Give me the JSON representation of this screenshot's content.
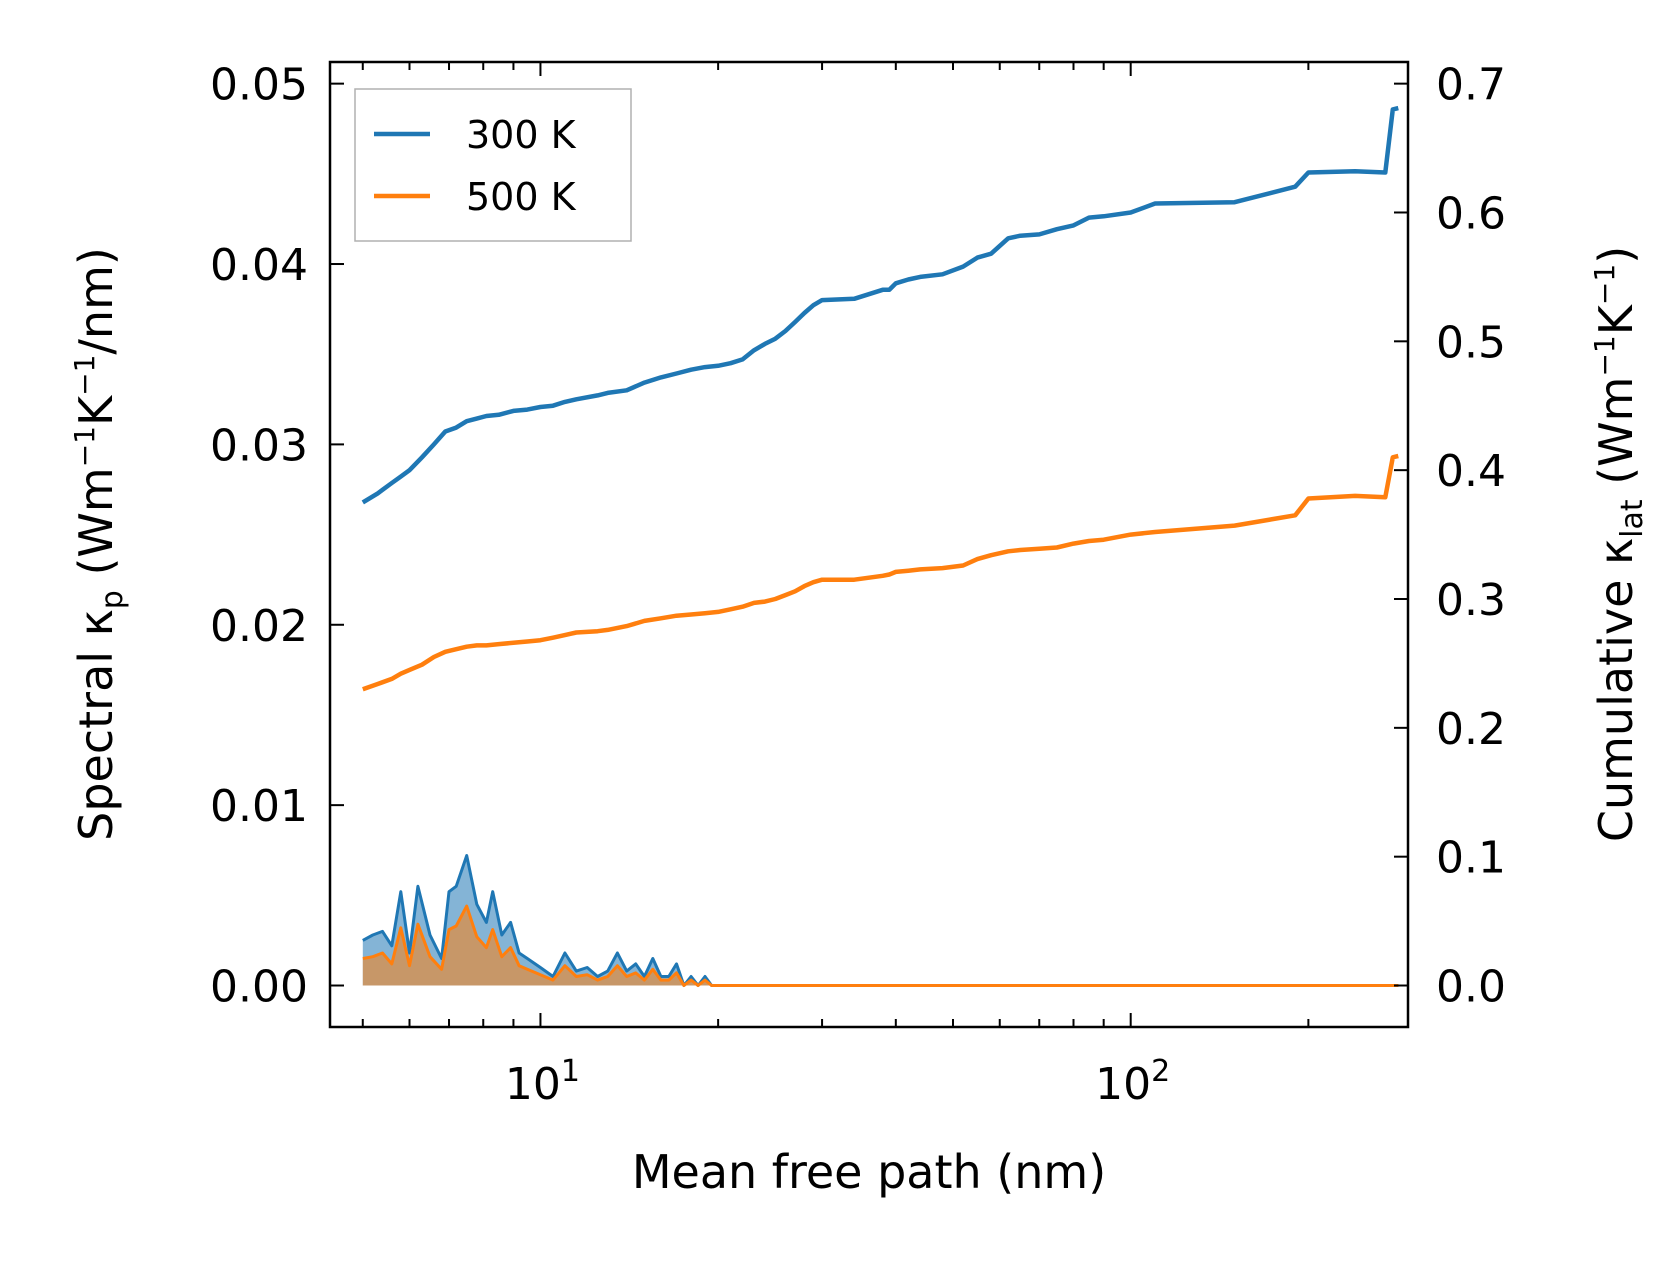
{
  "chart_data": {
    "type": "line",
    "xlabel": "Mean free path (nm)",
    "x_scale": "log",
    "xlim": [
      4.4,
      295
    ],
    "x_ticks": [
      {
        "value": 10,
        "base": "10",
        "exp": "1"
      },
      {
        "value": 100,
        "base": "10",
        "exp": "2"
      }
    ],
    "y_left": {
      "label_prefix": "Spectral κ",
      "label_sub": "p",
      "label_units_open": " (Wm",
      "label_sup1": "−1",
      "label_mid": "K",
      "label_sup2": "−1",
      "label_units_close": "/nm)",
      "ylim": [
        -0.0023,
        0.0512
      ],
      "ticks": [
        0.0,
        0.01,
        0.02,
        0.03,
        0.04,
        0.05
      ],
      "tick_labels": [
        "0.00",
        "0.01",
        "0.02",
        "0.03",
        "0.04",
        "0.05"
      ]
    },
    "y_right": {
      "label_prefix": "Cumulative κ",
      "label_sub": "lat",
      "label_units_open": " (Wm",
      "label_sup1": "−1",
      "label_mid": "K",
      "label_sup2": "−1",
      "label_units_close": ")",
      "ylim": [
        -0.0322,
        0.7168
      ],
      "ticks": [
        0.0,
        0.1,
        0.2,
        0.3,
        0.4,
        0.5,
        0.6,
        0.7
      ],
      "tick_labels": [
        "0.0",
        "0.1",
        "0.2",
        "0.3",
        "0.4",
        "0.5",
        "0.6",
        "0.7"
      ]
    },
    "legend": {
      "position": "top-left",
      "entries": [
        {
          "label": "300 K",
          "color": "#1f77b4"
        },
        {
          "label": "500 K",
          "color": "#ff7f0e"
        }
      ]
    },
    "series": [
      {
        "name": "300 K",
        "axis": "right",
        "kind": "cumulative",
        "color": "#1f77b4",
        "x": [
          5.0,
          5.3,
          5.6,
          5.8,
          6.0,
          6.3,
          6.6,
          6.9,
          7.2,
          7.5,
          7.8,
          8.1,
          8.5,
          9.0,
          9.5,
          10.0,
          10.5,
          11.0,
          11.5,
          12.5,
          13.0,
          14.0,
          15.0,
          16.0,
          17.0,
          18.0,
          19.0,
          20.0,
          21.0,
          22.0,
          23.0,
          24.0,
          25.0,
          26.0,
          27.0,
          28.0,
          29.0,
          30.0,
          34.0,
          38.0,
          39.0,
          40.0,
          42.0,
          44.0,
          48.0,
          52.0,
          55.0,
          58.0,
          62.0,
          65.0,
          70.0,
          75.0,
          80.0,
          85.0,
          90.0,
          100.0,
          110.0,
          150.0,
          190.0,
          200.0,
          240.0,
          270.0,
          278.0,
          284.0
        ],
        "y": [
          0.375,
          0.382,
          0.39,
          0.395,
          0.4,
          0.41,
          0.42,
          0.43,
          0.433,
          0.438,
          0.44,
          0.442,
          0.443,
          0.446,
          0.447,
          0.449,
          0.45,
          0.453,
          0.455,
          0.458,
          0.46,
          0.462,
          0.468,
          0.472,
          0.475,
          0.478,
          0.48,
          0.481,
          0.483,
          0.486,
          0.493,
          0.498,
          0.502,
          0.508,
          0.515,
          0.522,
          0.528,
          0.532,
          0.533,
          0.54,
          0.54,
          0.545,
          0.548,
          0.55,
          0.552,
          0.558,
          0.565,
          0.568,
          0.58,
          0.582,
          0.583,
          0.587,
          0.59,
          0.596,
          0.597,
          0.6,
          0.607,
          0.608,
          0.62,
          0.631,
          0.632,
          0.631,
          0.68,
          0.681
        ]
      },
      {
        "name": "500 K",
        "axis": "right",
        "kind": "cumulative",
        "color": "#ff7f0e",
        "x": [
          5.0,
          5.3,
          5.6,
          5.8,
          6.0,
          6.3,
          6.6,
          6.9,
          7.2,
          7.5,
          7.8,
          8.1,
          8.5,
          9.0,
          9.5,
          10.0,
          10.5,
          11.0,
          11.5,
          12.5,
          13.0,
          14.0,
          15.0,
          16.0,
          17.0,
          18.0,
          19.0,
          20.0,
          21.0,
          22.0,
          23.0,
          24.0,
          25.0,
          26.0,
          27.0,
          28.0,
          29.0,
          30.0,
          34.0,
          38.0,
          39.0,
          40.0,
          42.0,
          44.0,
          48.0,
          52.0,
          55.0,
          58.0,
          62.0,
          65.0,
          70.0,
          75.0,
          80.0,
          85.0,
          90.0,
          100.0,
          110.0,
          150.0,
          190.0,
          200.0,
          240.0,
          270.0,
          278.0,
          284.0
        ],
        "y": [
          0.23,
          0.234,
          0.238,
          0.242,
          0.245,
          0.249,
          0.255,
          0.259,
          0.261,
          0.263,
          0.264,
          0.264,
          0.265,
          0.266,
          0.267,
          0.268,
          0.27,
          0.272,
          0.274,
          0.275,
          0.276,
          0.279,
          0.283,
          0.285,
          0.287,
          0.288,
          0.289,
          0.29,
          0.292,
          0.294,
          0.297,
          0.298,
          0.3,
          0.303,
          0.306,
          0.31,
          0.313,
          0.315,
          0.315,
          0.318,
          0.319,
          0.321,
          0.322,
          0.323,
          0.324,
          0.326,
          0.331,
          0.334,
          0.337,
          0.338,
          0.339,
          0.34,
          0.343,
          0.345,
          0.346,
          0.35,
          0.352,
          0.357,
          0.365,
          0.378,
          0.38,
          0.379,
          0.41,
          0.411
        ]
      },
      {
        "name": "300 K",
        "axis": "left",
        "kind": "spectral",
        "fill": true,
        "color": "#1f77b4",
        "x": [
          5.0,
          5.2,
          5.4,
          5.6,
          5.8,
          6.0,
          6.2,
          6.5,
          6.8,
          7.0,
          7.2,
          7.5,
          7.8,
          8.1,
          8.3,
          8.6,
          8.9,
          9.2,
          9.5,
          10.0,
          10.5,
          11.0,
          11.5,
          12.0,
          12.5,
          13.0,
          13.5,
          14.0,
          14.5,
          15.0,
          15.5,
          16.0,
          16.5,
          17.0,
          17.5,
          18.0,
          18.5,
          19.0,
          19.5,
          20.0,
          20.5,
          21.0,
          22.0,
          23.0,
          24.0,
          25.0,
          26.0,
          27.0,
          28.0,
          29.0,
          30.0,
          31.0,
          33.0,
          37.0,
          38.0,
          39.0,
          40.0,
          41.0,
          42.0,
          43.0,
          44.0,
          45.0,
          47.0,
          51.0,
          52.0,
          53.0,
          55.0,
          57.0,
          59.0,
          61.0,
          63.0,
          65.0,
          68.0,
          76.0,
          78.0,
          80.0,
          82.0,
          84.0,
          86.0,
          88.0,
          90.0,
          105.0,
          107.0,
          109.0,
          111.0,
          190.0,
          195.0,
          200.0,
          205.0,
          210.0,
          265.0,
          268.0,
          270.0,
          272.0,
          275.0,
          278.0,
          280.0,
          282.0,
          284.0
        ],
        "y": [
          0.0025,
          0.0028,
          0.003,
          0.0022,
          0.0052,
          0.0018,
          0.0055,
          0.0028,
          0.0015,
          0.0052,
          0.0055,
          0.0072,
          0.0045,
          0.0035,
          0.0052,
          0.0028,
          0.0035,
          0.0018,
          0.0015,
          0.001,
          0.0005,
          0.0018,
          0.0008,
          0.001,
          0.0005,
          0.0008,
          0.0018,
          0.0008,
          0.0012,
          0.0005,
          0.0015,
          0.0005,
          0.0005,
          0.0012,
          0.0,
          0.0005,
          0.0,
          0.0005,
          0.0,
          0.0,
          0.0,
          0.0,
          0.0,
          0.0,
          0.0,
          0.0,
          0.0,
          0.0,
          0.0,
          0.0,
          0.0,
          0.0,
          0.0,
          0.0,
          0.0,
          0.0,
          0.0,
          0.0,
          0.0,
          0.0,
          0.0,
          0.0,
          0.0,
          0.0,
          0.0,
          0.0,
          0.0,
          0.0,
          0.0,
          0.0,
          0.0,
          0.0,
          0.0,
          0.0,
          0.0,
          0.0,
          0.0,
          0.0,
          0.0,
          0.0,
          0.0,
          0.0,
          0.0,
          0.0,
          0.0,
          0.0,
          0.0,
          0.0,
          0.0,
          0.0,
          0.0,
          0.0,
          0.0,
          0.0,
          0.0,
          0.0,
          0.0,
          0.0,
          0.0
        ]
      },
      {
        "name": "500 K",
        "axis": "left",
        "kind": "spectral",
        "fill": true,
        "color": "#ff7f0e",
        "x": [
          5.0,
          5.2,
          5.4,
          5.6,
          5.8,
          6.0,
          6.2,
          6.5,
          6.8,
          7.0,
          7.2,
          7.5,
          7.8,
          8.1,
          8.3,
          8.6,
          8.9,
          9.2,
          9.5,
          10.0,
          10.5,
          11.0,
          11.5,
          12.0,
          12.5,
          13.0,
          13.5,
          14.0,
          14.5,
          15.0,
          15.5,
          16.0,
          16.5,
          17.0,
          17.5,
          18.0,
          18.5,
          19.0,
          19.5,
          20.0,
          20.5,
          21.0,
          22.0,
          23.0,
          24.0,
          25.0,
          26.0,
          27.0,
          28.0,
          29.0,
          30.0,
          31.0,
          33.0,
          37.0,
          38.0,
          39.0,
          40.0,
          41.0,
          42.0,
          43.0,
          44.0,
          45.0,
          47.0,
          51.0,
          52.0,
          53.0,
          55.0,
          57.0,
          59.0,
          61.0,
          63.0,
          65.0,
          68.0,
          76.0,
          78.0,
          80.0,
          82.0,
          84.0,
          86.0,
          88.0,
          90.0,
          105.0,
          107.0,
          109.0,
          111.0,
          190.0,
          195.0,
          200.0,
          205.0,
          210.0,
          265.0,
          268.0,
          270.0,
          272.0,
          275.0,
          278.0,
          280.0,
          282.0,
          284.0
        ],
        "y": [
          0.0015,
          0.0016,
          0.0018,
          0.0012,
          0.0032,
          0.0011,
          0.0034,
          0.0016,
          0.0009,
          0.0031,
          0.0033,
          0.0044,
          0.0027,
          0.0021,
          0.0031,
          0.0016,
          0.0021,
          0.0011,
          0.0009,
          0.0006,
          0.0003,
          0.0011,
          0.0005,
          0.0006,
          0.0003,
          0.0005,
          0.0011,
          0.0005,
          0.0007,
          0.0003,
          0.0009,
          0.0003,
          0.0003,
          0.0007,
          0.0,
          0.0003,
          0.0,
          0.0003,
          0.0,
          0.0,
          0.0,
          0.0,
          0.0,
          0.0,
          0.0,
          0.0,
          0.0,
          0.0,
          0.0,
          0.0,
          0.0,
          0.0,
          0.0,
          0.0,
          0.0,
          0.0,
          0.0,
          0.0,
          0.0,
          0.0,
          0.0,
          0.0,
          0.0,
          0.0,
          0.0,
          0.0,
          0.0,
          0.0,
          0.0,
          0.0,
          0.0,
          0.0,
          0.0,
          0.0,
          0.0,
          0.0,
          0.0,
          0.0,
          0.0,
          0.0,
          0.0,
          0.0,
          0.0,
          0.0,
          0.0,
          0.0,
          0.0,
          0.0,
          0.0,
          0.0,
          0.0,
          0.0,
          0.0,
          0.0,
          0.0,
          0.0,
          0.0,
          0.0,
          0.0
        ]
      }
    ]
  }
}
